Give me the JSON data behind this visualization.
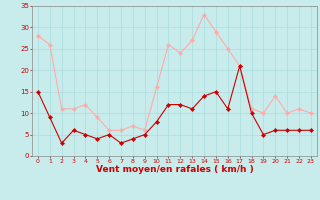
{
  "x": [
    0,
    1,
    2,
    3,
    4,
    5,
    6,
    7,
    8,
    9,
    10,
    11,
    12,
    13,
    14,
    15,
    16,
    17,
    18,
    19,
    20,
    21,
    22,
    23
  ],
  "wind_mean": [
    15,
    9,
    3,
    6,
    5,
    4,
    5,
    3,
    4,
    5,
    8,
    12,
    12,
    11,
    14,
    15,
    11,
    21,
    10,
    5,
    6,
    6,
    6,
    6
  ],
  "wind_gust": [
    28,
    26,
    11,
    11,
    12,
    9,
    6,
    6,
    7,
    6,
    16,
    26,
    24,
    27,
    33,
    29,
    25,
    21,
    11,
    10,
    14,
    10,
    11,
    10
  ],
  "xlabel": "Vent moyen/en rafales ( km/h )",
  "bg_color": "#c8ecec",
  "grid_color": "#aadddd",
  "mean_color": "#cc0000",
  "gust_color": "#ffaaaa",
  "tick_color": "#cc0000",
  "label_color": "#cc0000",
  "spine_color": "#888888",
  "ylim": [
    0,
    35
  ],
  "yticks": [
    0,
    5,
    10,
    15,
    20,
    25,
    30,
    35
  ]
}
